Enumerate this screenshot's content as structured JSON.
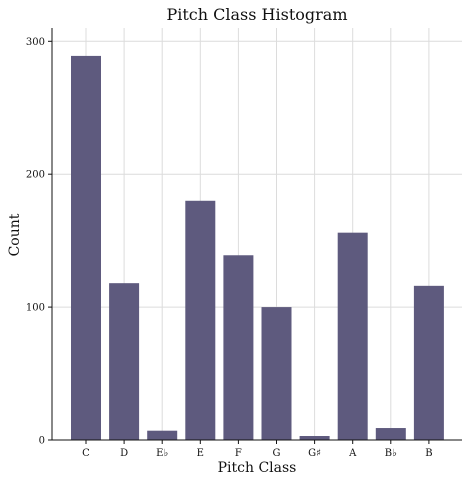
{
  "chart_data": {
    "type": "bar",
    "title": "Pitch Class Histogram",
    "xlabel": "Pitch Class",
    "ylabel": "Count",
    "categories": [
      "C",
      "D",
      "E♭",
      "E",
      "F",
      "G",
      "G♯",
      "A",
      "B♭",
      "B"
    ],
    "values": [
      289,
      118,
      7,
      180,
      139,
      100,
      3,
      156,
      9,
      116
    ],
    "ylim": [
      0,
      310
    ],
    "yticks": [
      0,
      100,
      200,
      300
    ],
    "grid": true,
    "bar_color": "#5e5a7e"
  }
}
